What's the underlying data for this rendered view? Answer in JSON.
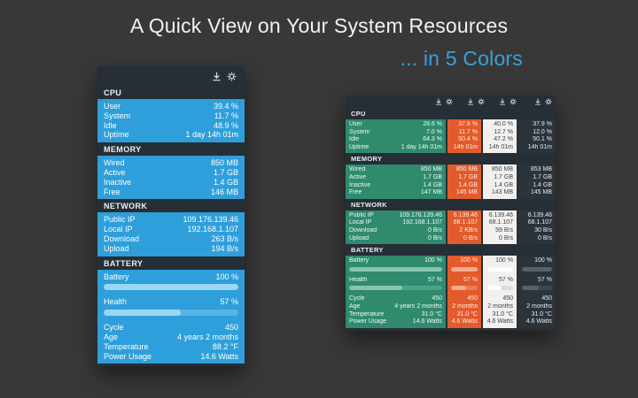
{
  "title": "A Quick View on Your System Resources",
  "subtitle": "... in 5 Colors",
  "palette": {
    "background": "#383838",
    "title_text": "#f2f2f2",
    "accent_blue": "#3aa0d9",
    "panel_chrome": "#262e36",
    "heading_text": "#edf0f2"
  },
  "header_icons": [
    "download-icon",
    "gear-icon"
  ],
  "blue_widget": {
    "theme": {
      "name": "blue",
      "bg": "#2e9fda",
      "text": "#ffffff",
      "bar_track": "#55b5e6",
      "bar_fill": "#9ad7f4"
    },
    "sections": [
      {
        "name": "CPU",
        "rows": [
          {
            "label": "User",
            "value": "39.4 %"
          },
          {
            "label": "System",
            "value": "11.7 %"
          },
          {
            "label": "Idle",
            "value": "48.9 %"
          },
          {
            "label": "Uptime",
            "value": "1 day 14h 01m"
          }
        ]
      },
      {
        "name": "MEMORY",
        "rows": [
          {
            "label": "Wired",
            "value": "850 MB"
          },
          {
            "label": "Active",
            "value": "1.7 GB"
          },
          {
            "label": "Inactive",
            "value": "1.4 GB"
          },
          {
            "label": "Free",
            "value": "146 MB"
          }
        ]
      },
      {
        "name": "NETWORK",
        "rows": [
          {
            "label": "Public IP",
            "value": "109.176.139.46"
          },
          {
            "label": "Local IP",
            "value": "192.168.1.107"
          },
          {
            "label": "Download",
            "value": "263 B/s"
          },
          {
            "label": "Upload",
            "value": "194 B/s"
          }
        ]
      },
      {
        "name": "BATTERY",
        "gauges": [
          {
            "label": "Battery",
            "value": "100 %",
            "percent": 100
          },
          {
            "label": "Health",
            "value": "57 %",
            "percent": 57
          }
        ],
        "rows": [
          {
            "label": "Cycle",
            "value": "450"
          },
          {
            "label": "Age",
            "value": "4 years 2 months"
          },
          {
            "label": "Temperature",
            "value": "88.2 °F"
          },
          {
            "label": "Power Usage",
            "value": "14.6 Watts"
          }
        ]
      }
    ]
  },
  "multi_widget": {
    "themes": [
      {
        "name": "green",
        "bg": "#2f8a6e",
        "text": "#f0faf6",
        "bar_track": "#4ba289",
        "bar_fill": "#86c4b1"
      },
      {
        "name": "orange",
        "bg": "#e15b2c",
        "text": "#ffeee5",
        "bar_track": "#ea7c55",
        "bar_fill": "#f3ab90"
      },
      {
        "name": "light",
        "bg": "#f1f0ee",
        "text": "#3d4248",
        "bar_track": "#dedcd8",
        "bar_fill": "#fdfdfc"
      },
      {
        "name": "dark",
        "bg": "#2b333b",
        "text": "#e8ebee",
        "bar_track": "#3e474f",
        "bar_fill": "#57616b"
      }
    ],
    "sections": [
      {
        "name": "CPU",
        "rows": [
          {
            "label": "User",
            "values": [
              "28.6 %",
              "37.9 %",
              "40.0 %",
              "37.9 %"
            ]
          },
          {
            "label": "System",
            "values": [
              "7.0 %",
              "11.7 %",
              "12.7 %",
              "12.0 %"
            ]
          },
          {
            "label": "Idle",
            "values": [
              "64.3 %",
              "50.4 %",
              "47.2 %",
              "50.1 %"
            ]
          },
          {
            "label": "Uptime",
            "values": [
              "1 day 14h 01m",
              "14h 01m",
              "14h 01m",
              "14h 01m"
            ]
          }
        ]
      },
      {
        "name": "MEMORY",
        "rows": [
          {
            "label": "Wired",
            "values": [
              "850 MB",
              "850 MB",
              "850 MB",
              "853 MB"
            ]
          },
          {
            "label": "Active",
            "values": [
              "1.7 GB",
              "1.7 GB",
              "1.7 GB",
              "1.7 GB"
            ]
          },
          {
            "label": "Inactive",
            "values": [
              "1.4 GB",
              "1.4 GB",
              "1.4 GB",
              "1.4 GB"
            ]
          },
          {
            "label": "Free",
            "values": [
              "147 MB",
              "145 MB",
              "143 MB",
              "145 MB"
            ]
          }
        ]
      },
      {
        "name": "NETWORK",
        "rows": [
          {
            "label": "Public IP",
            "values": [
              "109.176.139.46",
              "6.139.46",
              "6.139.46",
              "6.139.46"
            ]
          },
          {
            "label": "Local IP",
            "values": [
              "192.168.1.107",
              "68.1.107",
              "68.1.107",
              "68.1.107"
            ]
          },
          {
            "label": "Download",
            "values": [
              "0 B/s",
              "2 KB/s",
              "59 B/s",
              "30 B/s"
            ]
          },
          {
            "label": "Upload",
            "values": [
              "0 B/s",
              "0 B/s",
              "0 B/s",
              "0 B/s"
            ]
          }
        ]
      },
      {
        "name": "BATTERY",
        "gauges": [
          {
            "label": "Battery",
            "values": [
              "100 %",
              "100 %",
              "100 %",
              "100 %"
            ],
            "percent": 100
          },
          {
            "label": "Health",
            "values": [
              "57 %",
              "57 %",
              "57 %",
              "57 %"
            ],
            "percent": 57
          }
        ],
        "rows": [
          {
            "label": "Cycle",
            "values": [
              "450",
              "450",
              "450",
              "450"
            ]
          },
          {
            "label": "Age",
            "values": [
              "4 years 2 months",
              "2 months",
              "2 months",
              "2 months"
            ]
          },
          {
            "label": "Temperature",
            "values": [
              "31.0 °C",
              "31.0 °C",
              "31.0 °C",
              "31.0 °C"
            ]
          },
          {
            "label": "Power Usage",
            "values": [
              "14.6 Watts",
              "4.6 Watts",
              "4.6 Watts",
              "4.6 Watts"
            ]
          }
        ]
      }
    ]
  }
}
